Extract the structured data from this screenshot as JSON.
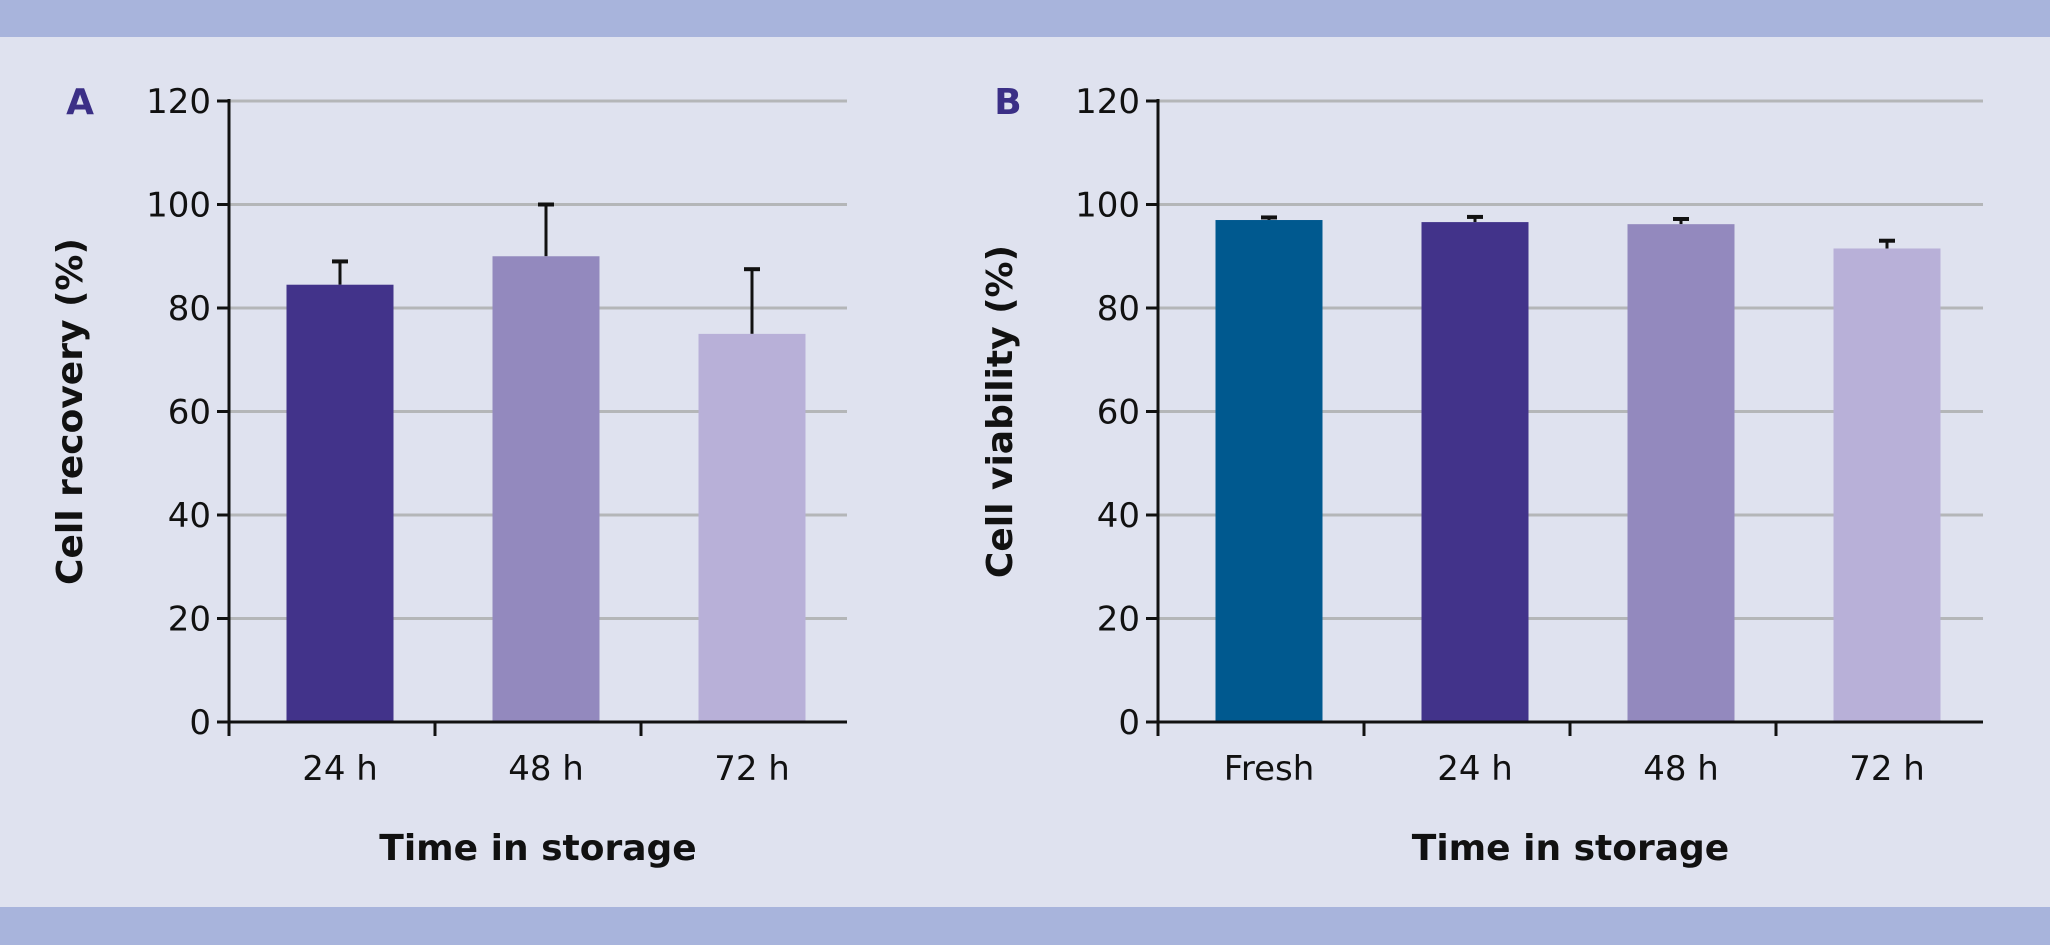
{
  "colors": {
    "background": "#dfe2ef",
    "band": "#a8b4dc",
    "grid": "#b4b6b8",
    "panel_label": "#3b2f86"
  },
  "chart_data": [
    {
      "type": "bar",
      "panel_label": "A",
      "xlabel": "Time in storage",
      "ylabel": "Cell recovery (%)",
      "ylim": [
        0,
        120
      ],
      "yticks": [
        0,
        20,
        40,
        60,
        80,
        100,
        120
      ],
      "grid": true,
      "categories": [
        "24 h",
        "48 h",
        "72 h"
      ],
      "values": [
        84.5,
        90,
        75
      ],
      "errors": [
        4.5,
        10,
        12.5
      ],
      "bar_colors": [
        "#42338a",
        "#9389be",
        "#b8b0d8"
      ]
    },
    {
      "type": "bar",
      "panel_label": "B",
      "xlabel": "Time in storage",
      "ylabel": "Cell viability (%)",
      "ylim": [
        0,
        120
      ],
      "yticks": [
        0,
        20,
        40,
        60,
        80,
        100,
        120
      ],
      "grid": true,
      "categories": [
        "Fresh",
        "24 h",
        "48 h",
        "72 h"
      ],
      "values": [
        97,
        96.6,
        96.2,
        91.5
      ],
      "errors": [
        0.5,
        1,
        1,
        1.5
      ],
      "bar_colors": [
        "#00598f",
        "#42338a",
        "#9389be",
        "#b8b0d8"
      ]
    }
  ]
}
